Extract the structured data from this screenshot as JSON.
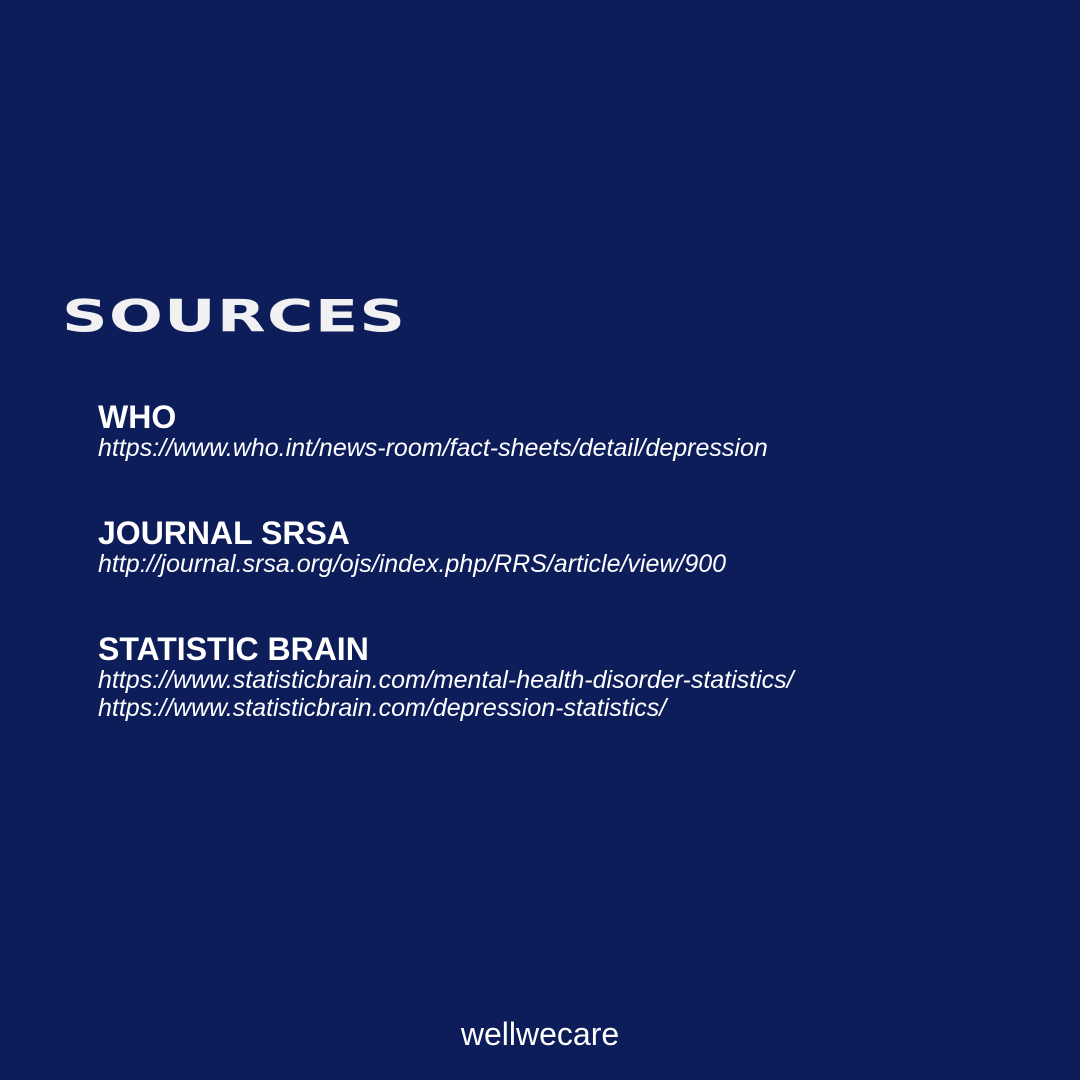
{
  "theme": {
    "background": "#0d1d5a",
    "heading_color": "#f1f1f3",
    "text_color": "#ffffff"
  },
  "heading": "SOURCES",
  "sources": [
    {
      "name": "WHO",
      "urls": [
        "https://www.who.int/news-room/fact-sheets/detail/depression"
      ]
    },
    {
      "name": "JOURNAL SRSA",
      "urls": [
        "http://journal.srsa.org/ojs/index.php/RRS/article/view/900"
      ]
    },
    {
      "name": "STATISTIC BRAIN",
      "urls": [
        "https://www.statisticbrain.com/mental-health-disorder-statistics/",
        "https://www.statisticbrain.com/depression-statistics/"
      ]
    }
  ],
  "brand": "wellwecare"
}
